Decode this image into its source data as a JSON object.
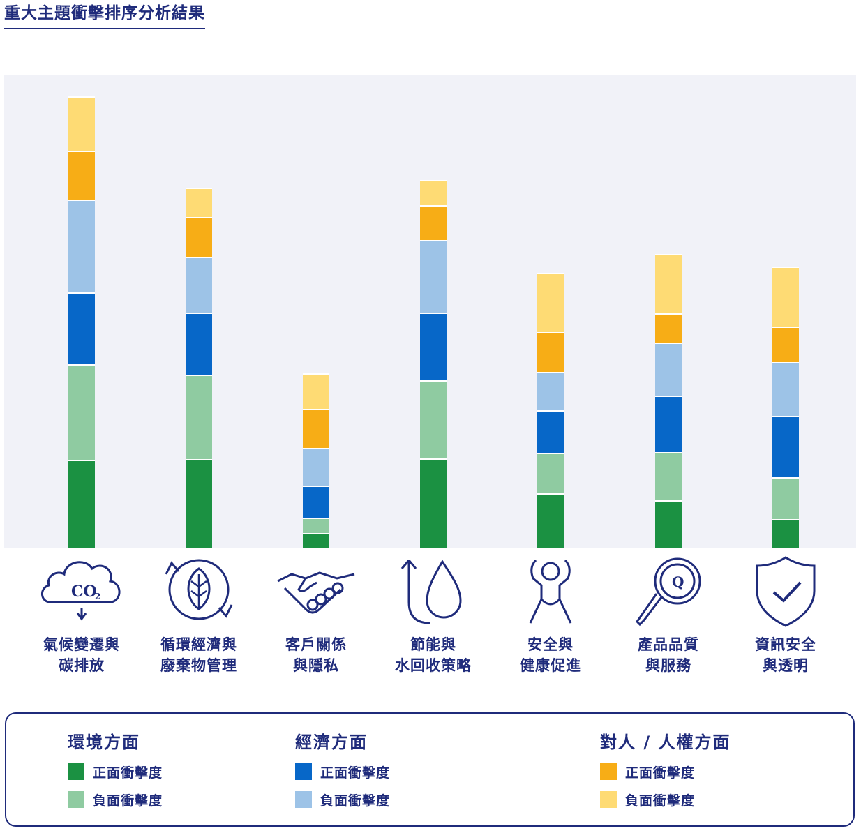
{
  "title": "重大主題衝擊排序分析結果",
  "chart_data": {
    "type": "bar",
    "stacked": true,
    "categories": [
      [
        "氣候變遷與",
        "碳排放"
      ],
      [
        "循環經濟與",
        "廢棄物管理"
      ],
      [
        "客戶關係",
        "與隱私"
      ],
      [
        "節能與",
        "水回收策略"
      ],
      [
        "安全與",
        "健康促進"
      ],
      [
        "產品品質",
        "與服務"
      ],
      [
        "資訊安全",
        "與透明"
      ]
    ],
    "icons": [
      "co2-cloud-icon",
      "recycle-leaf-icon",
      "handshake-icon",
      "water-cycle-icon",
      "person-health-icon",
      "quality-magnifier-icon",
      "shield-check-icon"
    ],
    "icon_text": {
      "co2": "CO",
      "co2_sub": "2",
      "quality": "Q"
    },
    "series": [
      {
        "group": "環境方面",
        "name": "正面衝擊度",
        "color": "#1b9142",
        "values": [
          121,
          122,
          20,
          123,
          75,
          65,
          39
        ]
      },
      {
        "group": "環境方面",
        "name": "負面衝擊度",
        "color": "#8fcba1",
        "values": [
          131,
          116,
          21,
          107,
          55,
          66,
          58
        ]
      },
      {
        "group": "經濟方面",
        "name": "正面衝擊度",
        "color": "#0767c8",
        "values": [
          99,
          85,
          44,
          93,
          59,
          78,
          84
        ]
      },
      {
        "group": "經濟方面",
        "name": "負面衝擊度",
        "color": "#9dc3e7",
        "values": [
          127,
          77,
          52,
          100,
          53,
          73,
          74
        ]
      },
      {
        "group": "對人 / 人權方面",
        "name": "正面衝擊度",
        "color": "#f7ad16",
        "values": [
          68,
          54,
          54,
          48,
          54,
          40,
          49
        ]
      },
      {
        "group": "對人 / 人權方面",
        "name": "負面衝擊度",
        "color": "#fedb74",
        "values": [
          74,
          41,
          49,
          34,
          82,
          82,
          82
        ]
      }
    ],
    "ylim": [
      0,
      650
    ],
    "grid": false,
    "legend_position": "bottom"
  },
  "legend": {
    "groups": [
      {
        "heading": "環境方面",
        "items": [
          {
            "label": "正面衝擊度",
            "color": "#1b9142"
          },
          {
            "label": "負面衝擊度",
            "color": "#8fcba1"
          }
        ]
      },
      {
        "heading": "經濟方面",
        "items": [
          {
            "label": "正面衝擊度",
            "color": "#0767c8"
          },
          {
            "label": "負面衝擊度",
            "color": "#9dc3e7"
          }
        ]
      },
      {
        "heading": "對人 / 人權方面",
        "items": [
          {
            "label": "正面衝擊度",
            "color": "#f7ad16"
          },
          {
            "label": "負面衝擊度",
            "color": "#fedb74"
          }
        ]
      }
    ]
  }
}
